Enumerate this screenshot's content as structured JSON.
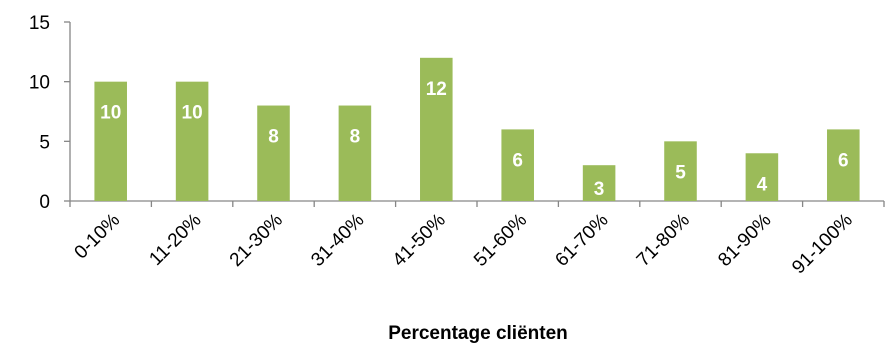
{
  "chart_data": {
    "type": "bar",
    "categories": [
      "0-10%",
      "11-20%",
      "21-30%",
      "31-40%",
      "41-50%",
      "51-60%",
      "61-70%",
      "71-80%",
      "81-90%",
      "91-100%"
    ],
    "values": [
      10,
      10,
      8,
      8,
      12,
      6,
      3,
      5,
      4,
      6
    ],
    "data_labels": [
      "10",
      "10",
      "8",
      "8",
      "12",
      "6",
      "3",
      "5",
      "4",
      "6"
    ],
    "title": "",
    "xlabel": "Percentage cliënten",
    "ylabel": "",
    "ylim": [
      0,
      15
    ],
    "yticks": [
      0,
      5,
      10,
      15
    ],
    "ytick_labels": [
      "0",
      "5",
      "10",
      "15"
    ],
    "grid": false,
    "legend": "none",
    "bar_color": "#9bbb59",
    "axis_color": "#868686"
  }
}
